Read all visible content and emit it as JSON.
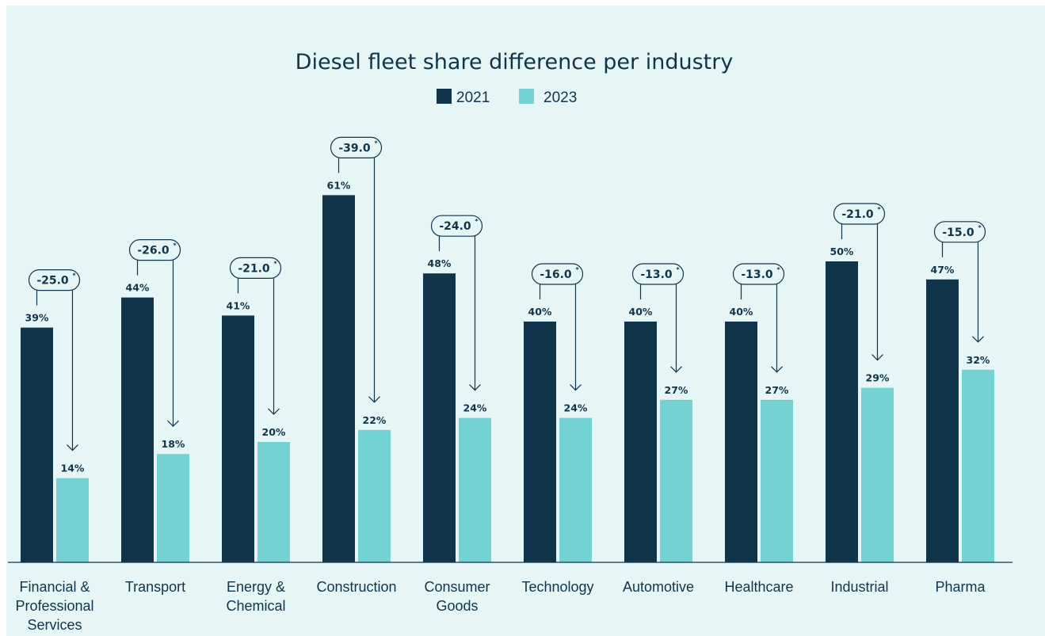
{
  "chart_data": {
    "type": "bar",
    "title": "Diesel fleet share difference per industry",
    "categories": [
      "Financial & Professional Services",
      "Transport",
      "Energy & Chemical",
      "Construction",
      "Consumer Goods",
      "Technology",
      "Automotive",
      "Healthcare",
      "Industrial",
      "Pharma"
    ],
    "category_lines": [
      [
        "Financial &",
        "Professional",
        "Services"
      ],
      [
        "Transport"
      ],
      [
        "Energy &",
        "Chemical"
      ],
      [
        "Construction"
      ],
      [
        "Consumer",
        "Goods"
      ],
      [
        "Technology"
      ],
      [
        "Automotive"
      ],
      [
        "Healthcare"
      ],
      [
        "Industrial"
      ],
      [
        "Pharma"
      ]
    ],
    "series": [
      {
        "name": "2021",
        "values": [
          39,
          44,
          41,
          61,
          48,
          40,
          40,
          40,
          50,
          47
        ]
      },
      {
        "name": "2023",
        "values": [
          14,
          18,
          20,
          22,
          24,
          24,
          27,
          27,
          29,
          32
        ]
      }
    ],
    "value_suffix": "%",
    "differences": [
      "-25.0",
      "-26.0",
      "-21.0",
      "-39.0",
      "-24.0",
      "-16.0",
      "-13.0",
      "-13.0",
      "-21.0",
      "-15.0"
    ],
    "difference_marker": "*",
    "ylim": [
      0,
      70
    ],
    "grid": false,
    "legend_position": "top-center",
    "colors": {
      "2021": "#10354a",
      "2023": "#74d3d2",
      "text": "#10354a",
      "background": "#e6f5f6"
    }
  }
}
